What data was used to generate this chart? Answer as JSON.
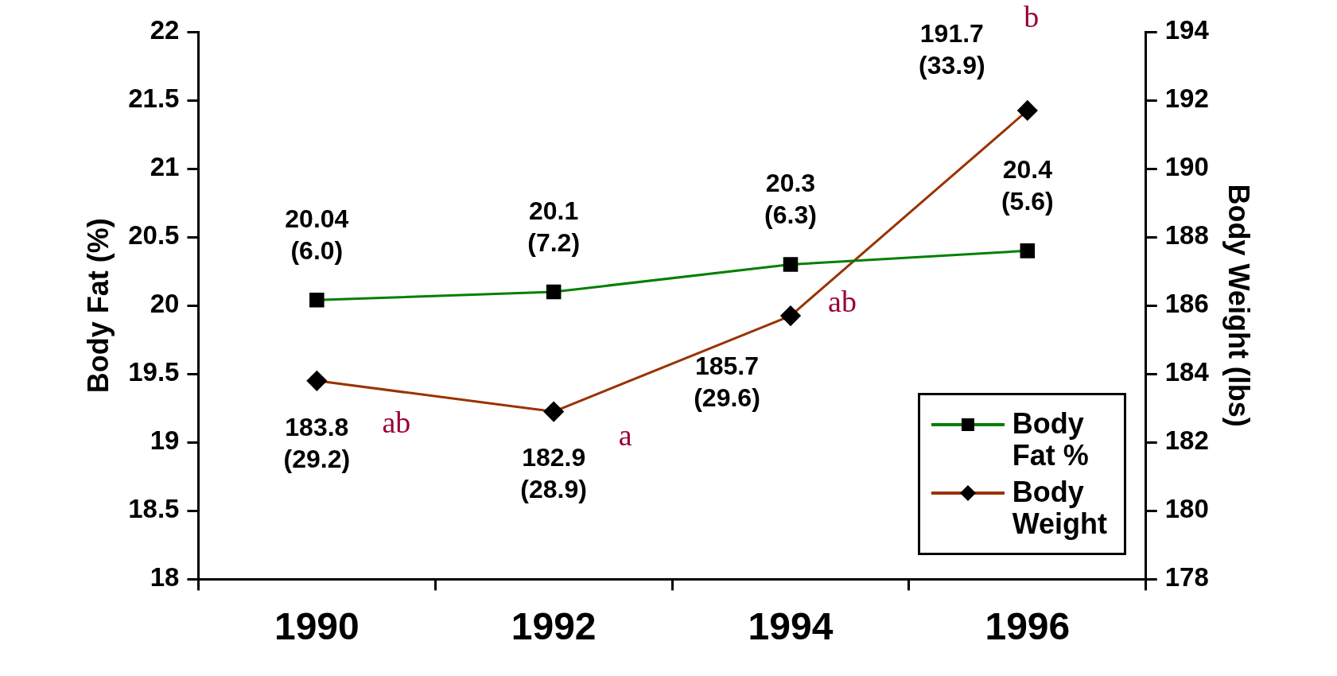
{
  "chart_data": {
    "type": "line",
    "categories": [
      "1990",
      "1992",
      "1994",
      "1996"
    ],
    "ylabel": "Body Fat (%)",
    "y2label": "Body Weight (lbs)",
    "ylim": [
      18,
      22
    ],
    "yticks": [
      18,
      18.5,
      19,
      19.5,
      20,
      20.5,
      21,
      21.5,
      22
    ],
    "y2lim": [
      178,
      194
    ],
    "y2ticks": [
      178,
      180,
      182,
      184,
      186,
      188,
      190,
      192,
      194
    ],
    "series": [
      {
        "name": "Body Fat %",
        "color": "#008000",
        "marker": "square",
        "values": [
          20.04,
          20.1,
          20.3,
          20.4
        ],
        "value_labels": [
          "20.04 (6.0)",
          "20.1 (7.2)",
          "20.3 (6.3)",
          "20.4 (5.6)"
        ]
      },
      {
        "name": "Body Weight",
        "color": "#993300",
        "marker": "diamond",
        "axis": "y2",
        "values": [
          183.8,
          182.9,
          185.7,
          191.7
        ],
        "value_labels": [
          "183.8 (29.2)",
          "182.9 (28.9)",
          "185.7 (29.6)",
          "191.7 (33.9)"
        ]
      }
    ],
    "annotations": [
      "ab",
      "a",
      "ab",
      "b"
    ],
    "legend": "bottom right",
    "grid": false
  }
}
